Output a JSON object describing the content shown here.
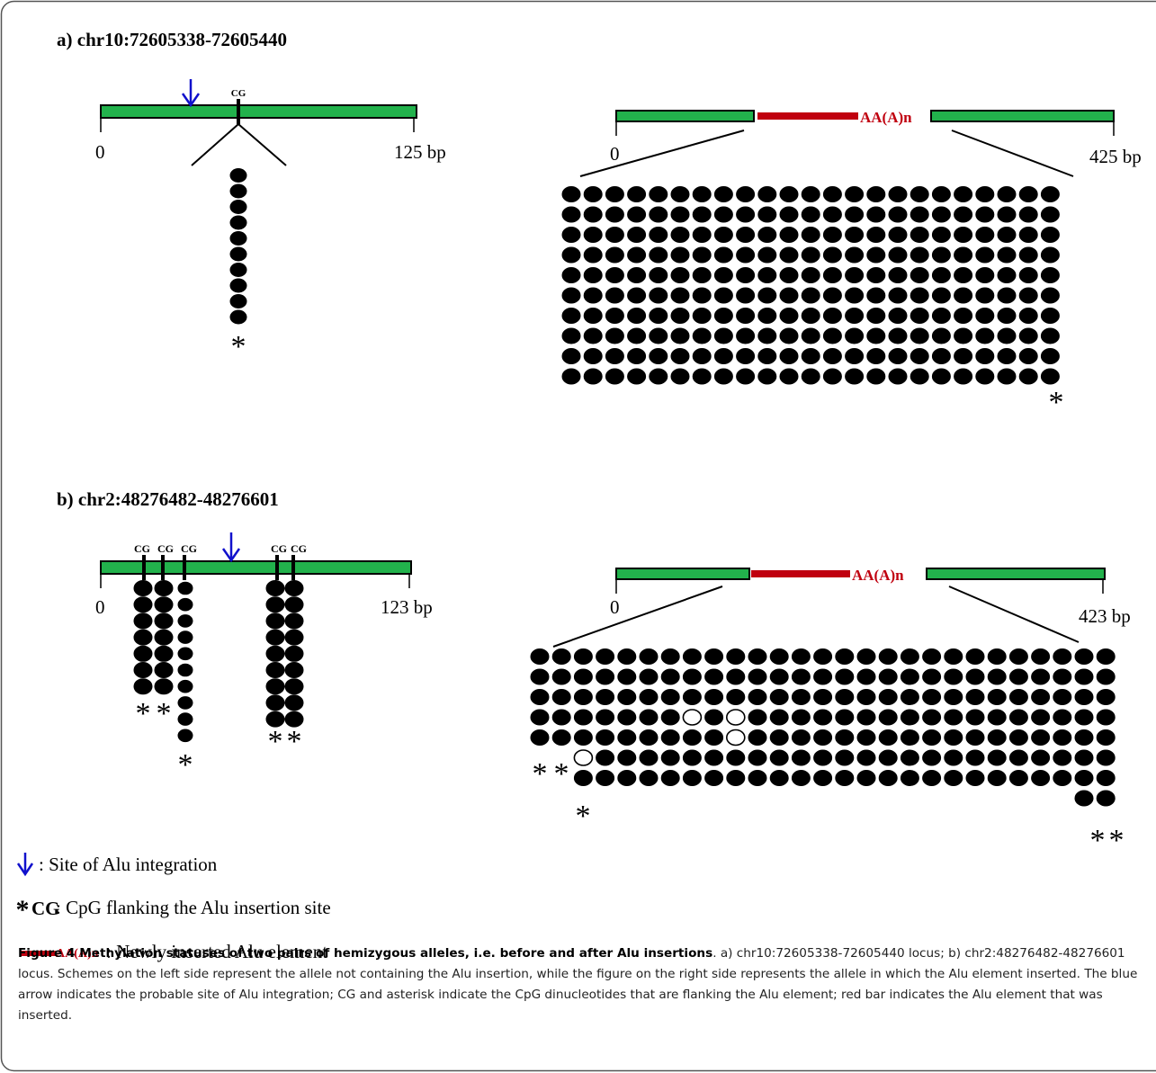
{
  "panel_a": {
    "label": "a) chr10:72605338-72605440",
    "left": {
      "cg_labels": [
        "CG"
      ],
      "axis_start": "0",
      "axis_end": "125 bp",
      "clone_rows": 10,
      "star": "*"
    },
    "right": {
      "insert_label": "AA(A)n",
      "axis_start": "0",
      "axis_end": "425 bp",
      "grid_rows": 10,
      "grid_cols": 23,
      "star": "*"
    }
  },
  "panel_b": {
    "label": "b) chr2:48276482-48276601",
    "left": {
      "cg_labels": [
        "CG",
        "CG",
        "CG",
        "CG",
        "CG"
      ],
      "axis_start": "0",
      "axis_end": "123 bp",
      "star": "*"
    },
    "right": {
      "insert_label": "AA(A)n",
      "axis_start": "0",
      "axis_end": "423 bp",
      "star": "*"
    }
  },
  "legend": {
    "arrow_text": ": Site of  Alu integration",
    "cg_star": "*",
    "cg_label": "CG",
    "cg_text": ":  CpG flanking the Alu insertion site",
    "alu_label": "AA(A)n",
    "alu_text": ": Newly inserted Alu element"
  },
  "caption": {
    "title": "Figure 4 Methylation statuses of two pairs of hemizygous alleles, i.e. before and after Alu insertions",
    "body": ". a) chr10:72605338-72605440 locus; b) chr2:48276482-48276601 locus. Schemes on the left side represent the allele not containing the Alu insertion, while the figure on the right side represents the allele in which the Alu element inserted. The blue arrow indicates the probable site of Alu integration; CG and asterisk indicate the CpG dinucleotides that are flanking the Alu element; red bar indicates the Alu element that was inserted."
  },
  "colors": {
    "green_bar": "#22b24c",
    "red_bar": "#c0000f",
    "arrow_blue": "#1010cc",
    "insert_text": "#c0000f"
  }
}
